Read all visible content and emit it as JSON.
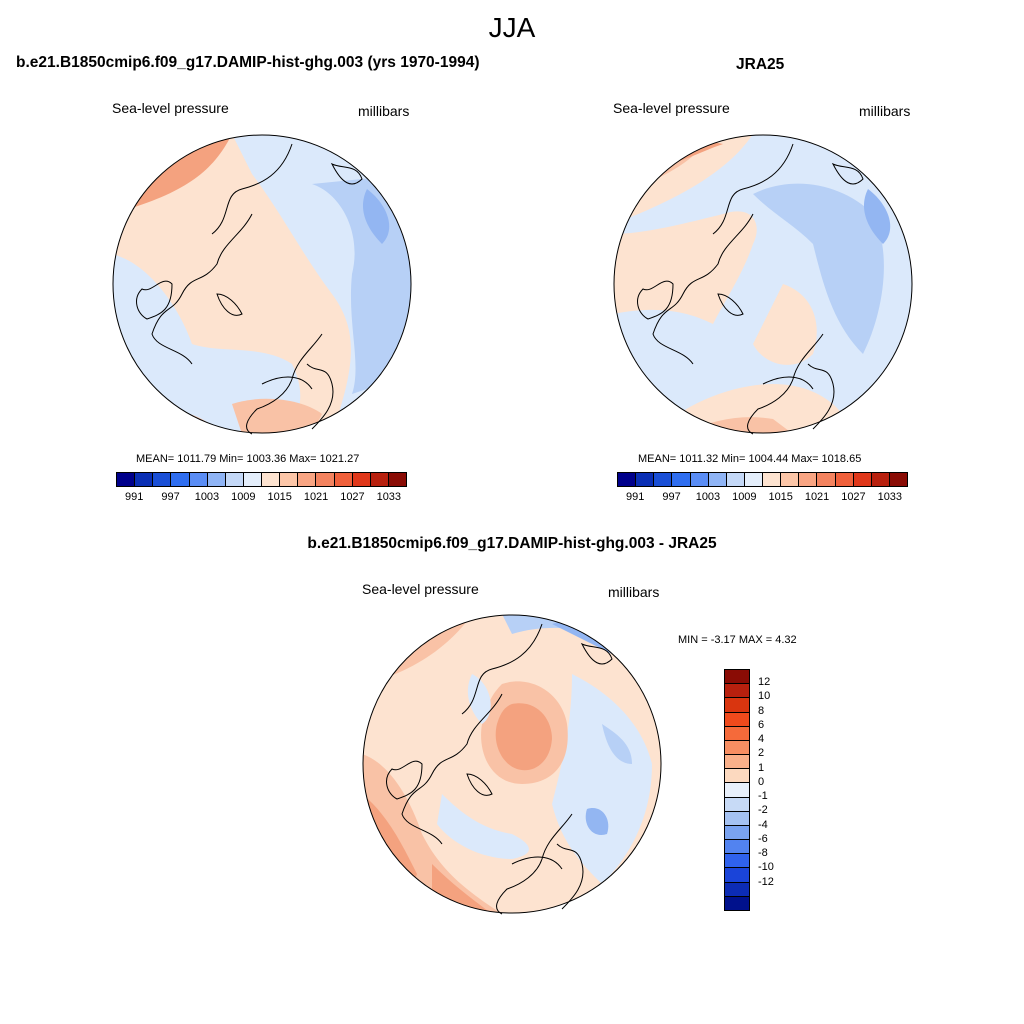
{
  "figure": {
    "title": "JJA"
  },
  "panels": {
    "model": {
      "title": "b.e21.B1850cmip6.f09_g17.DAMIP-hist-ghg.003 (yrs 1970-1994)",
      "variable": "Sea-level pressure",
      "units": "millibars",
      "stats": "MEAN= 1011.79  Min= 1003.36  Max= 1021.27"
    },
    "obs": {
      "title": "JRA25",
      "variable": "Sea-level pressure",
      "units": "millibars",
      "stats": "MEAN= 1011.32  Min= 1004.44  Max= 1018.65"
    },
    "diff": {
      "title": "b.e21.B1850cmip6.f09_g17.DAMIP-hist-ghg.003 - JRA25",
      "variable": "Sea-level pressure",
      "units": "millibars",
      "stats": "MIN =  -3.17 MAX =   4.32"
    }
  },
  "colorbars": {
    "slp": {
      "colors": [
        "#00008b",
        "#0a2fb5",
        "#1a4fd6",
        "#2f6ef0",
        "#5a8df5",
        "#8fb4f5",
        "#c4d8f7",
        "#e4eefb",
        "#fde3d0",
        "#fcc6a8",
        "#f9a583",
        "#f4835f",
        "#f0603b",
        "#e0371a",
        "#b8200e",
        "#8a0c05"
      ],
      "tick_labels": [
        "991",
        "997",
        "1003",
        "1009",
        "1015",
        "1021",
        "1027",
        "1033"
      ]
    },
    "diff": {
      "colors": [
        "#8a0c05",
        "#b8200e",
        "#d9350f",
        "#f04a1c",
        "#f56a3a",
        "#f78e62",
        "#f9b08a",
        "#fcd9bf",
        "#e8f0fb",
        "#c7daf6",
        "#a5c2f2",
        "#7aa3f0",
        "#5283f0",
        "#2f62ed",
        "#1a44d9",
        "#0c2cb5",
        "#00118c"
      ],
      "tick_labels": [
        "12",
        "10",
        "8",
        "6",
        "4",
        "2",
        "1",
        "0",
        "-1",
        "-2",
        "-4",
        "-6",
        "-8",
        "-10",
        "-12"
      ]
    }
  },
  "map_colors": {
    "light_blue": "#dbe9fb",
    "mid_blue": "#b7d0f6",
    "blue": "#93b6f2",
    "light_red": "#fde3d0",
    "mid_red": "#f9c2a6",
    "red": "#f4a27f",
    "white": "#f5f8fd"
  }
}
